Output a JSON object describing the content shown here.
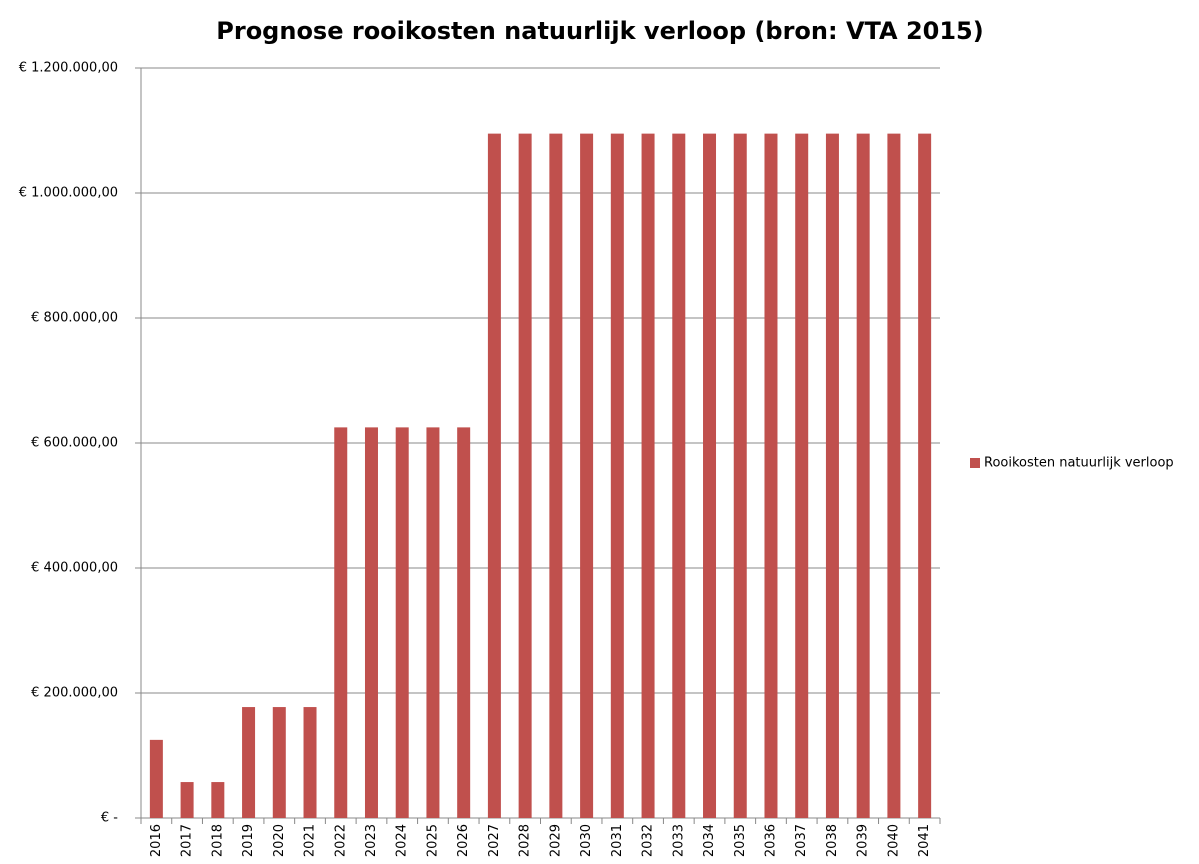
{
  "chart_data": {
    "type": "bar",
    "title": "Prognose rooikosten natuurlijk verloop (bron: VTA 2015)",
    "categories": [
      "2016",
      "2017",
      "2018",
      "2019",
      "2020",
      "2021",
      "2022",
      "2023",
      "2024",
      "2025",
      "2026",
      "2027",
      "2028",
      "2029",
      "2030",
      "2031",
      "2032",
      "2033",
      "2034",
      "2035",
      "2036",
      "2037",
      "2038",
      "2039",
      "2040",
      "2041"
    ],
    "series": [
      {
        "name": "Rooikosten natuurlijk verloop",
        "color": "#c0504d",
        "values": [
          125000,
          57500,
          57500,
          177500,
          177500,
          177500,
          625000,
          625000,
          625000,
          625000,
          625000,
          1095000,
          1095000,
          1095000,
          1095000,
          1095000,
          1095000,
          1095000,
          1095000,
          1095000,
          1095000,
          1095000,
          1095000,
          1095000,
          1095000,
          1095000
        ]
      }
    ],
    "ylim": [
      0,
      1200000
    ],
    "yticks": [
      {
        "value": 0,
        "label": "€ -"
      },
      {
        "value": 200000,
        "label": "€ 200.000,00"
      },
      {
        "value": 400000,
        "label": "€ 400.000,00"
      },
      {
        "value": 600000,
        "label": "€ 600.000,00"
      },
      {
        "value": 800000,
        "label": "€ 800.000,00"
      },
      {
        "value": 1000000,
        "label": "€ 1.000.000,00"
      },
      {
        "value": 1200000,
        "label": "€ 1.200.000,00"
      }
    ],
    "grid": true,
    "legend": "right"
  }
}
